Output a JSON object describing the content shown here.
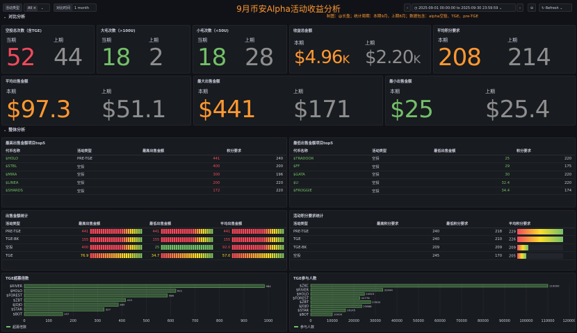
{
  "toolbar": {
    "var1_label": "活动类型",
    "var1_value": "All",
    "var2_label": "对比时间",
    "var2_value": "1 month",
    "time_range": "2025-09-01 00:00:00 to 2025-09-30 23:59:59",
    "refresh_label": "Refresh"
  },
  "header": {
    "title": "9月币安Alpha活动收益分析",
    "subtitle": "制图：@长盈；统计周期：本期9月，上期8月；数据包含：alpha空投、TGE、pre-TGE"
  },
  "rows": {
    "compare": "对比分析",
    "overall": "整体分析"
  },
  "stats": [
    {
      "title": "空投总次数（含TGE)",
      "cur_label": "当期",
      "cur": "52",
      "prev_label": "上期",
      "prev": "44",
      "color": "#f2495c"
    },
    {
      "title": "大毛次数（>100U)",
      "cur_label": "当期",
      "cur": "18",
      "prev_label": "上期",
      "prev": "2",
      "color": "#73bf69"
    },
    {
      "title": "小毛次数（<50U)",
      "cur_label": "当期",
      "cur": "18",
      "prev_label": "上期",
      "prev": "28",
      "color": "#73bf69"
    },
    {
      "title": "收益总金额",
      "cur_label": "本期",
      "cur": "$4.96",
      "cur_unit": "K",
      "prev_label": "上期",
      "prev": "$2.20",
      "prev_unit": "K",
      "color": "#ff9830"
    },
    {
      "title": "平均积分要求",
      "cur_label": "本期",
      "cur": "208",
      "prev_label": "上期",
      "prev": "214",
      "color": "#ff9830"
    },
    {
      "title": "平均出售金额",
      "cur_label": "本期",
      "cur": "$97.3",
      "prev_label": "上期",
      "prev": "$51.1",
      "color": "#ff9830"
    },
    {
      "title": "最大出售金额",
      "cur_label": "本期",
      "cur": "$441",
      "prev_label": "上期",
      "prev": "$171",
      "color": "#ff9830"
    },
    {
      "title": "最小出售金额",
      "cur_label": "本期",
      "cur": "$25",
      "prev_label": "上期",
      "prev": "$25.4",
      "color": "#73bf69"
    }
  ],
  "top5": {
    "title": "最高出售金额项目top5",
    "headers": [
      "代币名称",
      "活动类型",
      "最高出售金额",
      "积分要求"
    ],
    "rows": [
      {
        "name": "$HOLO",
        "type": "PRE-TGE",
        "amount": "441",
        "color": "#f2495c",
        "points": "240"
      },
      {
        "name": "$STBL",
        "type": "空投",
        "amount": "400",
        "color": "#f2495c",
        "points": "200"
      },
      {
        "name": "$MIRA",
        "type": "空投",
        "amount": "300",
        "color": "#f2495c",
        "points": "196"
      },
      {
        "name": "$LINEA",
        "type": "空投",
        "amount": "200",
        "color": "#f2495c",
        "points": "220"
      },
      {
        "name": "$SHARDS",
        "type": "空投",
        "amount": "172",
        "color": "#f2495c",
        "points": "220"
      }
    ]
  },
  "bottom5": {
    "title": "最低出售金额项目top5",
    "headers": [
      "代币名称",
      "活动类型",
      "最低出售金额",
      "积分要求"
    ],
    "rows": [
      {
        "name": "$TRADOOR",
        "type": "空投",
        "amount": "25",
        "color": "#73bf69",
        "points": "220"
      },
      {
        "name": "$FF",
        "type": "空投",
        "amount": "29",
        "color": "#73bf69",
        "points": "175"
      },
      {
        "name": "$GATA",
        "type": "空投",
        "amount": "30",
        "color": "#73bf69",
        "points": "220"
      },
      {
        "name": "$U",
        "type": "空投",
        "amount": "32.4",
        "color": "#73bf69",
        "points": "220"
      },
      {
        "name": "$FROGGIE",
        "type": "空投",
        "amount": "34.4",
        "color": "#73bf69",
        "points": "174"
      }
    ]
  },
  "sales": {
    "title": "出售金额统计",
    "headers": [
      "活动类型",
      "最高出售金额",
      "最低出售金额",
      "平均出售金额"
    ],
    "rows": [
      {
        "type": "PRE-TGE",
        "max": "441",
        "max_c": "#f2495c",
        "max_f": 1.0,
        "min": "441",
        "min_c": "#f2495c",
        "min_f": 1.0,
        "avg": "441",
        "avg_c": "#f2495c",
        "avg_f": 1.0
      },
      {
        "type": "TGE-BK",
        "max": "155",
        "max_c": "#f2495c",
        "max_f": 1.0,
        "min": "155",
        "min_c": "#f2495c",
        "min_f": 1.0,
        "avg": "155",
        "avg_c": "#f2495c",
        "avg_f": 1.0
      },
      {
        "type": "空投",
        "max": "400",
        "max_c": "#f2495c",
        "max_f": 1.0,
        "min": "25",
        "min_c": "#73bf69",
        "min_f": 1.0,
        "avg": "92.0",
        "avg_c": "#f2495c",
        "avg_f": 1.0
      },
      {
        "type": "TGE",
        "max": "76.9",
        "max_c": "#fade2a",
        "max_f": 1.0,
        "min": "34.7",
        "min_c": "#fade2a",
        "min_f": 1.0,
        "avg": "57.0",
        "avg_c": "#fade2a",
        "avg_f": 1.0
      }
    ]
  },
  "points": {
    "title": "活动积分要求统计",
    "headers": [
      "活动类型",
      "最高积分要求",
      "最低积分要求",
      "平均积分要求"
    ],
    "rows": [
      {
        "type": "PRE-TGE",
        "max": "240",
        "min": "218",
        "avg": "229",
        "avg_f": 1.0
      },
      {
        "type": "TGE",
        "max": "240",
        "min": "210",
        "avg": "226",
        "avg_f": 1.0
      },
      {
        "type": "TGE-BK",
        "max": "209",
        "min": "209",
        "avg": "209",
        "avg_f": 0.25
      },
      {
        "type": "空投",
        "max": "245",
        "min": "170",
        "avg": "205",
        "avg_f": 0.2
      }
    ]
  },
  "chart_data": [
    {
      "type": "bar",
      "orientation": "horizontal",
      "title": "TGE超募倍数",
      "categories": [
        "$RIVER",
        "$HOLO",
        "$FOREST",
        "$ZBT",
        "$JOJO",
        "$STAR",
        "$BOT"
      ],
      "series": [
        {
          "name": "超募倍数",
          "values": [
            984,
            621,
            586,
            415,
            385,
            327,
            157
          ]
        }
      ],
      "xlim": [
        0,
        1000
      ],
      "xticks": [
        "0",
        "100",
        "200",
        "300",
        "400",
        "500",
        "600",
        "700",
        "800",
        "900",
        "1000"
      ],
      "legend": "bottom-left",
      "color": "#73bf69"
    },
    {
      "type": "bar",
      "orientation": "horizontal",
      "title": "TGE参与人数",
      "categories": [
        "$ZKC",
        "$RIVER",
        "$HOLO",
        "$FOREST",
        "$ZBT",
        "$JOJO",
        "$STAR",
        "$BOT"
      ],
      "series": [
        {
          "name": "参与人数",
          "values": [
            110000,
            33444,
            24923,
            22776,
            27832,
            23688,
            16145,
            10000
          ]
        }
      ],
      "xlim": [
        0,
        120000
      ],
      "xticks": [
        "0",
        "10000",
        "20000",
        "30000",
        "40000",
        "50000",
        "60000",
        "70000",
        "80000",
        "90000",
        "100000",
        "110000",
        "120000"
      ],
      "legend": "bottom-left",
      "color": "#73bf69"
    }
  ]
}
